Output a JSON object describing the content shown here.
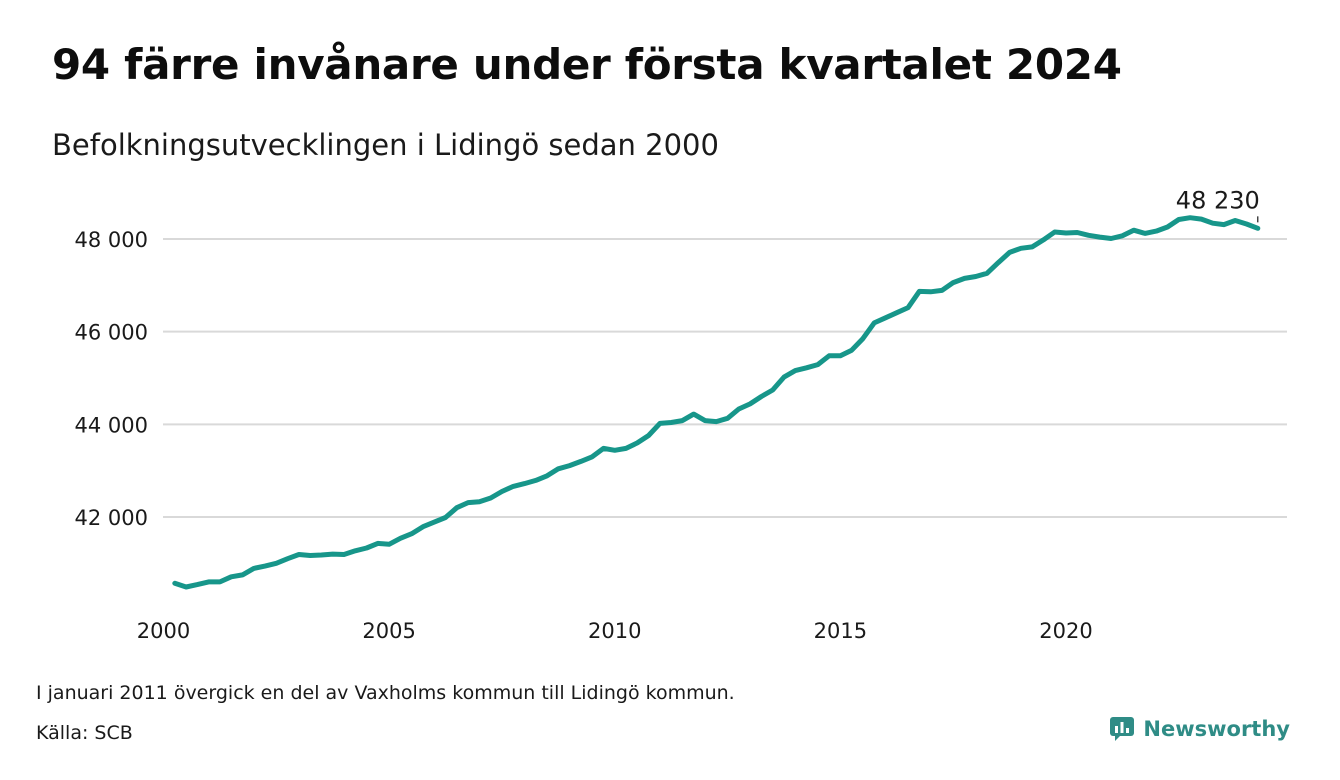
{
  "title": "94 färre invånare under första kvartalet 2024",
  "subtitle": "Befolkningsutvecklingen i Lidingö sedan 2000",
  "note": "I januari 2011 övergick en del av Vaxholms kommun till Lidingö kommun.",
  "source": "Källa: SCB",
  "brand": {
    "name": "Newsworthy",
    "icon": "newsworthy-logo-icon"
  },
  "colors": {
    "line": "#17968a",
    "grid": "#d9d9d9",
    "brand": "#2f8c86"
  },
  "chart_data": {
    "type": "line",
    "title": "94 färre invånare under första kvartalet 2024",
    "subtitle": "Befolkningsutvecklingen i Lidingö sedan 2000",
    "xlabel": "",
    "ylabel": "",
    "x_ticks": [
      2000,
      2005,
      2010,
      2015,
      2020
    ],
    "x_tick_labels": [
      "2000",
      "2005",
      "2010",
      "2015",
      "2020"
    ],
    "y_ticks": [
      42000,
      44000,
      46000,
      48000
    ],
    "y_tick_labels": [
      "42 000",
      "44 000",
      "46 000",
      "48 000"
    ],
    "xlim": [
      2000,
      2024.25
    ],
    "ylim": [
      40100,
      48700
    ],
    "grid": "horizontal",
    "end_label": "48 230",
    "series": [
      {
        "x": [
          2000.25,
          2000.5,
          2000.75,
          2001.0,
          2001.25,
          2001.5,
          2001.75,
          2002.0,
          2002.25,
          2002.5,
          2002.75,
          2003.0,
          2003.25,
          2003.5,
          2003.75,
          2004.0,
          2004.25,
          2004.5,
          2004.75,
          2005.0,
          2005.25,
          2005.5,
          2005.75,
          2006.0,
          2006.25,
          2006.5,
          2006.75,
          2007.0,
          2007.25,
          2007.5,
          2007.75,
          2008.0,
          2008.25,
          2008.5,
          2008.75,
          2009.0,
          2009.25,
          2009.5,
          2009.75,
          2010.0,
          2010.25,
          2010.5,
          2010.75,
          2011.0,
          2011.25,
          2011.5,
          2011.75,
          2012.0,
          2012.25,
          2012.5,
          2012.75,
          2013.0,
          2013.25,
          2013.5,
          2013.75,
          2014.0,
          2014.25,
          2014.5,
          2014.75,
          2015.0,
          2015.25,
          2015.5,
          2015.75,
          2016.0,
          2016.25,
          2016.5,
          2016.75,
          2017.0,
          2017.25,
          2017.5,
          2017.75,
          2018.0,
          2018.25,
          2018.5,
          2018.75,
          2019.0,
          2019.25,
          2019.5,
          2019.75,
          2020.0,
          2020.25,
          2020.5,
          2020.75,
          2021.0,
          2021.25,
          2021.5,
          2021.75,
          2022.0,
          2022.25,
          2022.5,
          2022.75,
          2023.0,
          2023.25,
          2023.5,
          2023.75,
          2024.0,
          2024.25
        ],
        "values": [
          40570,
          40490,
          40540,
          40600,
          40600,
          40710,
          40750,
          40890,
          40940,
          41000,
          41100,
          41190,
          41170,
          41180,
          41200,
          41190,
          41270,
          41330,
          41430,
          41410,
          41540,
          41640,
          41790,
          41890,
          41990,
          42200,
          42310,
          42330,
          42410,
          42550,
          42660,
          42720,
          42790,
          42890,
          43040,
          43110,
          43200,
          43300,
          43480,
          43440,
          43480,
          43600,
          43760,
          44020,
          44040,
          44080,
          44220,
          44080,
          44060,
          44130,
          44330,
          44440,
          44600,
          44740,
          45020,
          45160,
          45220,
          45290,
          45480,
          45480,
          45600,
          45850,
          46190,
          46300,
          46410,
          46520,
          46870,
          46860,
          46890,
          47060,
          47150,
          47190,
          47260,
          47490,
          47710,
          47800,
          47830,
          47980,
          48150,
          48130,
          48140,
          48080,
          48040,
          48010,
          48070,
          48190,
          48120,
          48170,
          48260,
          48420,
          48460,
          48430,
          48340,
          48310,
          48400,
          48324,
          48230
        ]
      }
    ]
  }
}
